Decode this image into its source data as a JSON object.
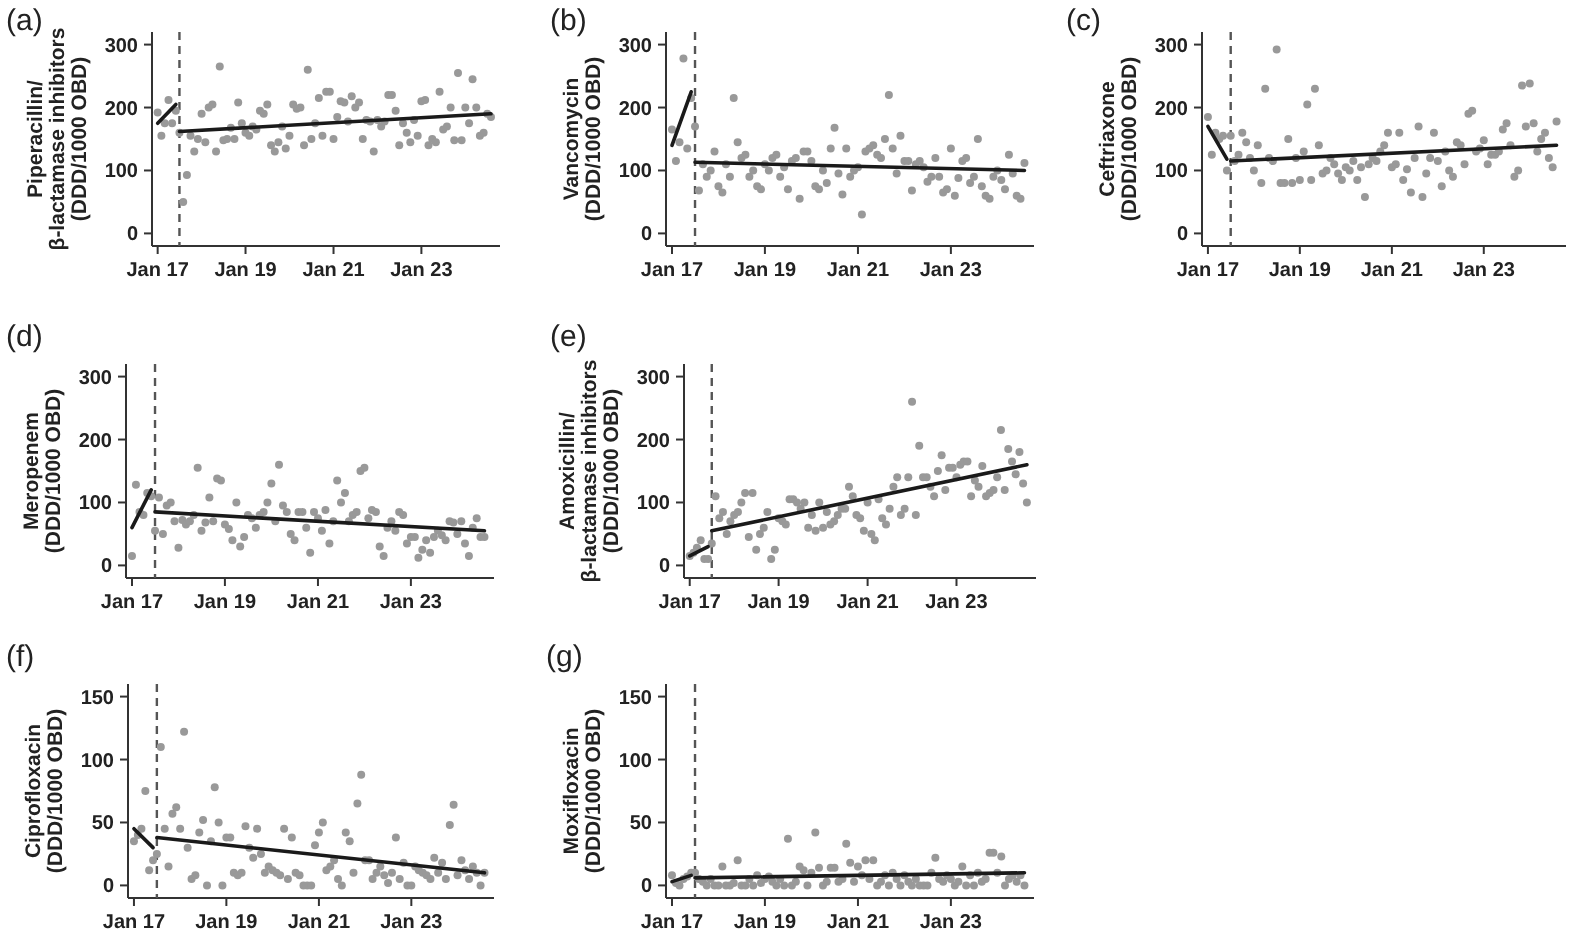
{
  "chart_data": [
    {
      "type": "scatter",
      "title": "(a)",
      "ylabel": "Piperacillin/\nβ-lactamase inhibitors\n(DDD/1000 OBD)",
      "xlim": [
        "2016-11-15",
        "2024-10-15"
      ],
      "ylim": [
        -20,
        320
      ],
      "yticks": [
        0,
        100,
        200,
        300
      ],
      "xticks": [
        {
          "value": "2017-01",
          "label": "Jan 17"
        },
        {
          "value": "2019-01",
          "label": "Jan 19"
        },
        {
          "value": "2021-01",
          "label": "Jan 21"
        },
        {
          "value": "2023-01",
          "label": "Jan 23"
        }
      ],
      "ref_lines": [
        {
          "axis": "x",
          "value": "2017-07",
          "line_style": "dashed",
          "color": "#555555"
        }
      ],
      "x": [
        "2017-01",
        "2017-02",
        "2017-03",
        "2017-04",
        "2017-05",
        "2017-06",
        "2017-07",
        "2017-08",
        "2017-09",
        "2017-10",
        "2017-11",
        "2017-12",
        "2018-01",
        "2018-02",
        "2018-03",
        "2018-04",
        "2018-05",
        "2018-06",
        "2018-07",
        "2018-08",
        "2018-09",
        "2018-10",
        "2018-11",
        "2018-12",
        "2019-01",
        "2019-02",
        "2019-03",
        "2019-04",
        "2019-05",
        "2019-06",
        "2019-07",
        "2019-08",
        "2019-09",
        "2019-10",
        "2019-11",
        "2019-12",
        "2020-01",
        "2020-02",
        "2020-03",
        "2020-04",
        "2020-05",
        "2020-06",
        "2020-07",
        "2020-08",
        "2020-09",
        "2020-10",
        "2020-11",
        "2020-12",
        "2021-01",
        "2021-02",
        "2021-03",
        "2021-04",
        "2021-05",
        "2021-06",
        "2021-07",
        "2021-08",
        "2021-09",
        "2021-10",
        "2021-11",
        "2021-12",
        "2022-01",
        "2022-02",
        "2022-03",
        "2022-04",
        "2022-05",
        "2022-06",
        "2022-07",
        "2022-08",
        "2022-09",
        "2022-10",
        "2022-11",
        "2022-12",
        "2023-01",
        "2023-02",
        "2023-03",
        "2023-04",
        "2023-05",
        "2023-06",
        "2023-07",
        "2023-08",
        "2023-09",
        "2023-10",
        "2023-11",
        "2023-12",
        "2024-01",
        "2024-02",
        "2024-03",
        "2024-04",
        "2024-05",
        "2024-06",
        "2024-07",
        "2024-08"
      ],
      "series": [
        {
          "marker": "circle",
          "color": "#999999",
          "values": [
            192,
            155,
            175,
            212,
            175,
            195,
            160,
            50,
            93,
            155,
            130,
            150,
            190,
            145,
            200,
            205,
            130,
            265,
            148,
            150,
            168,
            150,
            208,
            175,
            160,
            155,
            170,
            165,
            195,
            190,
            205,
            140,
            130,
            145,
            170,
            135,
            155,
            205,
            198,
            200,
            140,
            260,
            150,
            175,
            215,
            155,
            225,
            225,
            150,
            185,
            210,
            208,
            178,
            218,
            200,
            208,
            150,
            180,
            178,
            130,
            180,
            170,
            178,
            220,
            220,
            195,
            140,
            175,
            160,
            145,
            180,
            155,
            210,
            212,
            140,
            150,
            145,
            225,
            165,
            170,
            200,
            148,
            255,
            148,
            200,
            175,
            245,
            200,
            155,
            160,
            190,
            185
          ]
        },
        {
          "type": "line",
          "color": "#1a1a1a",
          "x": [
            "2017-01",
            "2017-06"
          ],
          "values": [
            175,
            205
          ]
        },
        {
          "type": "line",
          "color": "#1a1a1a",
          "x": [
            "2017-07",
            "2024-08"
          ],
          "values": [
            162,
            190
          ]
        }
      ]
    },
    {
      "type": "scatter",
      "title": "(b)",
      "ylabel": "Vancomycin\n(DDD/1000 OBD)",
      "xlim": [
        "2016-11-15",
        "2024-10-15"
      ],
      "ylim": [
        -20,
        320
      ],
      "yticks": [
        0,
        100,
        200,
        300
      ],
      "xticks": [
        {
          "value": "2017-01",
          "label": "Jan 17"
        },
        {
          "value": "2019-01",
          "label": "Jan 19"
        },
        {
          "value": "2021-01",
          "label": "Jan 21"
        },
        {
          "value": "2023-01",
          "label": "Jan 23"
        }
      ],
      "ref_lines": [
        {
          "axis": "x",
          "value": "2017-07",
          "line_style": "dashed",
          "color": "#555555"
        }
      ],
      "x": [
        "2017-01",
        "2017-02",
        "2017-03",
        "2017-04",
        "2017-05",
        "2017-06",
        "2017-07",
        "2017-08",
        "2017-09",
        "2017-10",
        "2017-11",
        "2017-12",
        "2018-01",
        "2018-02",
        "2018-03",
        "2018-04",
        "2018-05",
        "2018-06",
        "2018-07",
        "2018-08",
        "2018-09",
        "2018-10",
        "2018-11",
        "2018-12",
        "2019-01",
        "2019-02",
        "2019-03",
        "2019-04",
        "2019-05",
        "2019-06",
        "2019-07",
        "2019-08",
        "2019-09",
        "2019-10",
        "2019-11",
        "2019-12",
        "2020-01",
        "2020-02",
        "2020-03",
        "2020-04",
        "2020-05",
        "2020-06",
        "2020-07",
        "2020-08",
        "2020-09",
        "2020-10",
        "2020-11",
        "2020-12",
        "2021-01",
        "2021-02",
        "2021-03",
        "2021-04",
        "2021-05",
        "2021-06",
        "2021-07",
        "2021-08",
        "2021-09",
        "2021-10",
        "2021-11",
        "2021-12",
        "2022-01",
        "2022-02",
        "2022-03",
        "2022-04",
        "2022-05",
        "2022-06",
        "2022-07",
        "2022-08",
        "2022-09",
        "2022-10",
        "2022-11",
        "2022-12",
        "2023-01",
        "2023-02",
        "2023-03",
        "2023-04",
        "2023-05",
        "2023-06",
        "2023-07",
        "2023-08",
        "2023-09",
        "2023-10",
        "2023-11",
        "2023-12",
        "2024-01",
        "2024-02",
        "2024-03",
        "2024-04",
        "2024-05",
        "2024-06",
        "2024-07",
        "2024-08"
      ],
      "series": [
        {
          "marker": "circle",
          "color": "#999999",
          "values": [
            165,
            115,
            145,
            278,
            135,
            215,
            170,
            68,
            110,
            90,
            100,
            130,
            75,
            65,
            110,
            90,
            215,
            145,
            120,
            125,
            90,
            100,
            75,
            70,
            110,
            100,
            120,
            125,
            90,
            105,
            70,
            115,
            120,
            55,
            130,
            130,
            115,
            75,
            70,
            100,
            80,
            135,
            168,
            95,
            62,
            135,
            90,
            100,
            105,
            30,
            130,
            135,
            140,
            125,
            120,
            150,
            220,
            135,
            95,
            155,
            115,
            115,
            68,
            110,
            115,
            105,
            82,
            90,
            120,
            90,
            65,
            70,
            135,
            60,
            88,
            115,
            120,
            80,
            90,
            150,
            75,
            60,
            55,
            90,
            100,
            85,
            70,
            125,
            95,
            60,
            55,
            112
          ]
        },
        {
          "type": "line",
          "color": "#1a1a1a",
          "x": [
            "2017-01",
            "2017-06"
          ],
          "values": [
            140,
            225
          ]
        },
        {
          "type": "line",
          "color": "#1a1a1a",
          "x": [
            "2017-07",
            "2024-08"
          ],
          "values": [
            113,
            100
          ]
        }
      ]
    },
    {
      "type": "scatter",
      "title": "(c)",
      "ylabel": "Ceftriaxone\n(DDD/1000 OBD)",
      "xlim": [
        "2016-11-15",
        "2024-10-15"
      ],
      "ylim": [
        -20,
        320
      ],
      "yticks": [
        0,
        100,
        200,
        300
      ],
      "xticks": [
        {
          "value": "2017-01",
          "label": "Jan 17"
        },
        {
          "value": "2019-01",
          "label": "Jan 19"
        },
        {
          "value": "2021-01",
          "label": "Jan 21"
        },
        {
          "value": "2023-01",
          "label": "Jan 23"
        }
      ],
      "ref_lines": [
        {
          "axis": "x",
          "value": "2017-07",
          "line_style": "dashed",
          "color": "#555555"
        }
      ],
      "x": [
        "2017-01",
        "2017-02",
        "2017-03",
        "2017-04",
        "2017-05",
        "2017-06",
        "2017-07",
        "2017-08",
        "2017-09",
        "2017-10",
        "2017-11",
        "2017-12",
        "2018-01",
        "2018-02",
        "2018-03",
        "2018-04",
        "2018-05",
        "2018-06",
        "2018-07",
        "2018-08",
        "2018-09",
        "2018-10",
        "2018-11",
        "2018-12",
        "2019-01",
        "2019-02",
        "2019-03",
        "2019-04",
        "2019-05",
        "2019-06",
        "2019-07",
        "2019-08",
        "2019-09",
        "2019-10",
        "2019-11",
        "2019-12",
        "2020-01",
        "2020-02",
        "2020-03",
        "2020-04",
        "2020-05",
        "2020-06",
        "2020-07",
        "2020-08",
        "2020-09",
        "2020-10",
        "2020-11",
        "2020-12",
        "2021-01",
        "2021-02",
        "2021-03",
        "2021-04",
        "2021-05",
        "2021-06",
        "2021-07",
        "2021-08",
        "2021-09",
        "2021-10",
        "2021-11",
        "2021-12",
        "2022-01",
        "2022-02",
        "2022-03",
        "2022-04",
        "2022-05",
        "2022-06",
        "2022-07",
        "2022-08",
        "2022-09",
        "2022-10",
        "2022-11",
        "2022-12",
        "2023-01",
        "2023-02",
        "2023-03",
        "2023-04",
        "2023-05",
        "2023-06",
        "2023-07",
        "2023-08",
        "2023-09",
        "2023-10",
        "2023-11",
        "2023-12",
        "2024-01",
        "2024-02",
        "2024-03",
        "2024-04",
        "2024-05",
        "2024-06",
        "2024-07",
        "2024-08"
      ],
      "series": [
        {
          "marker": "circle",
          "color": "#999999",
          "values": [
            185,
            125,
            160,
            150,
            155,
            100,
            155,
            115,
            125,
            160,
            145,
            120,
            100,
            140,
            80,
            230,
            120,
            115,
            292,
            80,
            80,
            150,
            80,
            120,
            85,
            130,
            205,
            85,
            230,
            140,
            95,
            100,
            120,
            110,
            95,
            85,
            105,
            100,
            115,
            85,
            105,
            58,
            110,
            120,
            115,
            130,
            140,
            160,
            105,
            110,
            160,
            85,
            102,
            65,
            120,
            170,
            58,
            95,
            120,
            160,
            115,
            75,
            130,
            100,
            90,
            145,
            140,
            110,
            190,
            195,
            130,
            135,
            148,
            110,
            125,
            125,
            130,
            165,
            175,
            140,
            90,
            100,
            235,
            170,
            238,
            175,
            130,
            150,
            160,
            120,
            105,
            178
          ]
        },
        {
          "type": "line",
          "color": "#1a1a1a",
          "x": [
            "2017-01",
            "2017-06"
          ],
          "values": [
            170,
            118
          ]
        },
        {
          "type": "line",
          "color": "#1a1a1a",
          "x": [
            "2017-07",
            "2024-08"
          ],
          "values": [
            115,
            140
          ]
        }
      ]
    },
    {
      "type": "scatter",
      "title": "(d)",
      "ylabel": "Meropenem\n(DDD/1000 OBD)",
      "xlim": [
        "2016-11-15",
        "2024-10-15"
      ],
      "ylim": [
        -20,
        320
      ],
      "yticks": [
        0,
        100,
        200,
        300
      ],
      "xticks": [
        {
          "value": "2017-01",
          "label": "Jan 17"
        },
        {
          "value": "2019-01",
          "label": "Jan 19"
        },
        {
          "value": "2021-01",
          "label": "Jan 21"
        },
        {
          "value": "2023-01",
          "label": "Jan 23"
        }
      ],
      "ref_lines": [
        {
          "axis": "x",
          "value": "2017-07",
          "line_style": "dashed",
          "color": "#555555"
        }
      ],
      "x": [
        "2017-01",
        "2017-02",
        "2017-03",
        "2017-04",
        "2017-05",
        "2017-06",
        "2017-07",
        "2017-08",
        "2017-09",
        "2017-10",
        "2017-11",
        "2017-12",
        "2018-01",
        "2018-02",
        "2018-03",
        "2018-04",
        "2018-05",
        "2018-06",
        "2018-07",
        "2018-08",
        "2018-09",
        "2018-10",
        "2018-11",
        "2018-12",
        "2019-01",
        "2019-02",
        "2019-03",
        "2019-04",
        "2019-05",
        "2019-06",
        "2019-07",
        "2019-08",
        "2019-09",
        "2019-10",
        "2019-11",
        "2019-12",
        "2020-01",
        "2020-02",
        "2020-03",
        "2020-04",
        "2020-05",
        "2020-06",
        "2020-07",
        "2020-08",
        "2020-09",
        "2020-10",
        "2020-11",
        "2020-12",
        "2021-01",
        "2021-02",
        "2021-03",
        "2021-04",
        "2021-05",
        "2021-06",
        "2021-07",
        "2021-08",
        "2021-09",
        "2021-10",
        "2021-11",
        "2021-12",
        "2022-01",
        "2022-02",
        "2022-03",
        "2022-04",
        "2022-05",
        "2022-06",
        "2022-07",
        "2022-08",
        "2022-09",
        "2022-10",
        "2022-11",
        "2022-12",
        "2023-01",
        "2023-02",
        "2023-03",
        "2023-04",
        "2023-05",
        "2023-06",
        "2023-07",
        "2023-08",
        "2023-09",
        "2023-10",
        "2023-11",
        "2023-12",
        "2024-01",
        "2024-02",
        "2024-03",
        "2024-04",
        "2024-05",
        "2024-06",
        "2024-07",
        "2024-08"
      ],
      "series": [
        {
          "marker": "circle",
          "color": "#999999",
          "values": [
            15,
            128,
            85,
            80,
            115,
            110,
            55,
            108,
            50,
            95,
            100,
            70,
            28,
            72,
            65,
            70,
            80,
            155,
            55,
            68,
            108,
            70,
            138,
            135,
            65,
            58,
            40,
            100,
            30,
            45,
            80,
            75,
            60,
            80,
            85,
            100,
            130,
            70,
            160,
            95,
            85,
            50,
            40,
            85,
            85,
            60,
            20,
            85,
            75,
            55,
            88,
            35,
            70,
            135,
            100,
            115,
            70,
            80,
            85,
            150,
            155,
            75,
            88,
            85,
            30,
            15,
            60,
            70,
            55,
            85,
            80,
            35,
            45,
            45,
            12,
            25,
            40,
            20,
            45,
            55,
            48,
            40,
            70,
            68,
            50,
            70,
            35,
            15,
            60,
            75,
            45,
            45
          ]
        },
        {
          "type": "line",
          "color": "#1a1a1a",
          "x": [
            "2017-01",
            "2017-06"
          ],
          "values": [
            60,
            120
          ]
        },
        {
          "type": "line",
          "color": "#1a1a1a",
          "x": [
            "2017-07",
            "2024-08"
          ],
          "values": [
            85,
            55
          ]
        }
      ]
    },
    {
      "type": "scatter",
      "title": "(e)",
      "ylabel": "Amoxicillin/\nβ-lactamase inhibitors\n(DDD/1000 OBD)",
      "xlim": [
        "2016-11-15",
        "2024-10-15"
      ],
      "ylim": [
        -20,
        320
      ],
      "yticks": [
        0,
        100,
        200,
        300
      ],
      "xticks": [
        {
          "value": "2017-01",
          "label": "Jan 17"
        },
        {
          "value": "2019-01",
          "label": "Jan 19"
        },
        {
          "value": "2021-01",
          "label": "Jan 21"
        },
        {
          "value": "2023-01",
          "label": "Jan 23"
        }
      ],
      "ref_lines": [
        {
          "axis": "x",
          "value": "2017-07",
          "line_style": "dashed",
          "color": "#555555"
        }
      ],
      "x": [
        "2017-01",
        "2017-02",
        "2017-03",
        "2017-04",
        "2017-05",
        "2017-06",
        "2017-07",
        "2017-08",
        "2017-09",
        "2017-10",
        "2017-11",
        "2017-12",
        "2018-01",
        "2018-02",
        "2018-03",
        "2018-04",
        "2018-05",
        "2018-06",
        "2018-07",
        "2018-08",
        "2018-09",
        "2018-10",
        "2018-11",
        "2018-12",
        "2019-01",
        "2019-02",
        "2019-03",
        "2019-04",
        "2019-05",
        "2019-06",
        "2019-07",
        "2019-08",
        "2019-09",
        "2019-10",
        "2019-11",
        "2019-12",
        "2020-01",
        "2020-02",
        "2020-03",
        "2020-04",
        "2020-05",
        "2020-06",
        "2020-07",
        "2020-08",
        "2020-09",
        "2020-10",
        "2020-11",
        "2020-12",
        "2021-01",
        "2021-02",
        "2021-03",
        "2021-04",
        "2021-05",
        "2021-06",
        "2021-07",
        "2021-08",
        "2021-09",
        "2021-10",
        "2021-11",
        "2021-12",
        "2022-01",
        "2022-02",
        "2022-03",
        "2022-04",
        "2022-05",
        "2022-06",
        "2022-07",
        "2022-08",
        "2022-09",
        "2022-10",
        "2022-11",
        "2022-12",
        "2023-01",
        "2023-02",
        "2023-03",
        "2023-04",
        "2023-05",
        "2023-06",
        "2023-07",
        "2023-08",
        "2023-09",
        "2023-10",
        "2023-11",
        "2023-12",
        "2024-01",
        "2024-02",
        "2024-03",
        "2024-04",
        "2024-05",
        "2024-06",
        "2024-07",
        "2024-08"
      ],
      "series": [
        {
          "marker": "circle",
          "color": "#999999",
          "values": [
            15,
            20,
            28,
            40,
            10,
            10,
            35,
            110,
            75,
            85,
            50,
            70,
            80,
            85,
            100,
            115,
            45,
            115,
            25,
            50,
            60,
            85,
            10,
            25,
            75,
            70,
            65,
            105,
            105,
            100,
            90,
            100,
            60,
            80,
            55,
            100,
            60,
            85,
            65,
            70,
            80,
            90,
            90,
            125,
            110,
            80,
            75,
            55,
            100,
            50,
            40,
            105,
            75,
            65,
            90,
            125,
            140,
            80,
            90,
            140,
            260,
            80,
            190,
            140,
            140,
            125,
            110,
            150,
            175,
            120,
            155,
            155,
            140,
            160,
            165,
            165,
            110,
            135,
            125,
            158,
            110,
            115,
            120,
            140,
            215,
            120,
            185,
            165,
            145,
            180,
            130,
            100
          ]
        },
        {
          "type": "line",
          "color": "#1a1a1a",
          "x": [
            "2017-01",
            "2017-06"
          ],
          "values": [
            15,
            30
          ]
        },
        {
          "type": "line",
          "color": "#1a1a1a",
          "x": [
            "2017-07",
            "2024-08"
          ],
          "values": [
            55,
            160
          ]
        }
      ]
    },
    {
      "type": "scatter",
      "title": "(f)",
      "ylabel": "Ciprofloxacin\n(DDD/1000 OBD)",
      "xlim": [
        "2016-11-15",
        "2024-10-15"
      ],
      "ylim": [
        -10,
        160
      ],
      "yticks": [
        0,
        50,
        100,
        150
      ],
      "xticks": [
        {
          "value": "2017-01",
          "label": "Jan 17"
        },
        {
          "value": "2019-01",
          "label": "Jan 19"
        },
        {
          "value": "2021-01",
          "label": "Jan 21"
        },
        {
          "value": "2023-01",
          "label": "Jan 23"
        }
      ],
      "ref_lines": [
        {
          "axis": "x",
          "value": "2017-07",
          "line_style": "dashed",
          "color": "#555555"
        }
      ],
      "x": [
        "2017-01",
        "2017-02",
        "2017-03",
        "2017-04",
        "2017-05",
        "2017-06",
        "2017-07",
        "2017-08",
        "2017-09",
        "2017-10",
        "2017-11",
        "2017-12",
        "2018-01",
        "2018-02",
        "2018-03",
        "2018-04",
        "2018-05",
        "2018-06",
        "2018-07",
        "2018-08",
        "2018-09",
        "2018-10",
        "2018-11",
        "2018-12",
        "2019-01",
        "2019-02",
        "2019-03",
        "2019-04",
        "2019-05",
        "2019-06",
        "2019-07",
        "2019-08",
        "2019-09",
        "2019-10",
        "2019-11",
        "2019-12",
        "2020-01",
        "2020-02",
        "2020-03",
        "2020-04",
        "2020-05",
        "2020-06",
        "2020-07",
        "2020-08",
        "2020-09",
        "2020-10",
        "2020-11",
        "2020-12",
        "2021-01",
        "2021-02",
        "2021-03",
        "2021-04",
        "2021-05",
        "2021-06",
        "2021-07",
        "2021-08",
        "2021-09",
        "2021-10",
        "2021-11",
        "2021-12",
        "2022-01",
        "2022-02",
        "2022-03",
        "2022-04",
        "2022-05",
        "2022-06",
        "2022-07",
        "2022-08",
        "2022-09",
        "2022-10",
        "2022-11",
        "2022-12",
        "2023-01",
        "2023-02",
        "2023-03",
        "2023-04",
        "2023-05",
        "2023-06",
        "2023-07",
        "2023-08",
        "2023-09",
        "2023-10",
        "2023-11",
        "2023-12",
        "2024-01",
        "2024-02",
        "2024-03",
        "2024-04",
        "2024-05",
        "2024-06",
        "2024-07",
        "2024-08"
      ],
      "series": [
        {
          "marker": "circle",
          "color": "#999999",
          "values": [
            35,
            40,
            45,
            75,
            12,
            20,
            25,
            110,
            45,
            15,
            57,
            62,
            45,
            122,
            30,
            5,
            8,
            42,
            52,
            0,
            35,
            78,
            50,
            0,
            38,
            38,
            10,
            8,
            10,
            47,
            30,
            22,
            45,
            25,
            10,
            15,
            12,
            10,
            8,
            45,
            5,
            38,
            10,
            8,
            0,
            0,
            0,
            32,
            42,
            50,
            12,
            15,
            20,
            5,
            0,
            42,
            35,
            10,
            65,
            88,
            20,
            20,
            5,
            10,
            15,
            8,
            2,
            10,
            38,
            5,
            18,
            0,
            0,
            15,
            12,
            10,
            8,
            5,
            22,
            10,
            18,
            5,
            48,
            64,
            8,
            20,
            12,
            5,
            15,
            10,
            0,
            10
          ]
        },
        {
          "type": "line",
          "color": "#1a1a1a",
          "x": [
            "2017-01",
            "2017-06"
          ],
          "values": [
            45,
            30
          ]
        },
        {
          "type": "line",
          "color": "#1a1a1a",
          "x": [
            "2017-07",
            "2024-08"
          ],
          "values": [
            38,
            10
          ]
        }
      ]
    },
    {
      "type": "scatter",
      "title": "(g)",
      "ylabel": "Moxifloxacin\n(DDD/1000 OBD)",
      "xlim": [
        "2016-11-15",
        "2024-10-15"
      ],
      "ylim": [
        -10,
        160
      ],
      "yticks": [
        0,
        50,
        100,
        150
      ],
      "xticks": [
        {
          "value": "2017-01",
          "label": "Jan 17"
        },
        {
          "value": "2019-01",
          "label": "Jan 19"
        },
        {
          "value": "2021-01",
          "label": "Jan 21"
        },
        {
          "value": "2023-01",
          "label": "Jan 23"
        }
      ],
      "ref_lines": [
        {
          "axis": "x",
          "value": "2017-07",
          "line_style": "dashed",
          "color": "#555555"
        }
      ],
      "x": [
        "2017-01",
        "2017-02",
        "2017-03",
        "2017-04",
        "2017-05",
        "2017-06",
        "2017-07",
        "2017-08",
        "2017-09",
        "2017-10",
        "2017-11",
        "2017-12",
        "2018-01",
        "2018-02",
        "2018-03",
        "2018-04",
        "2018-05",
        "2018-06",
        "2018-07",
        "2018-08",
        "2018-09",
        "2018-10",
        "2018-11",
        "2018-12",
        "2019-01",
        "2019-02",
        "2019-03",
        "2019-04",
        "2019-05",
        "2019-06",
        "2019-07",
        "2019-08",
        "2019-09",
        "2019-10",
        "2019-11",
        "2019-12",
        "2020-01",
        "2020-02",
        "2020-03",
        "2020-04",
        "2020-05",
        "2020-06",
        "2020-07",
        "2020-08",
        "2020-09",
        "2020-10",
        "2020-11",
        "2020-12",
        "2021-01",
        "2021-02",
        "2021-03",
        "2021-04",
        "2021-05",
        "2021-06",
        "2021-07",
        "2021-08",
        "2021-09",
        "2021-10",
        "2021-11",
        "2021-12",
        "2022-01",
        "2022-02",
        "2022-03",
        "2022-04",
        "2022-05",
        "2022-06",
        "2022-07",
        "2022-08",
        "2022-09",
        "2022-10",
        "2022-11",
        "2022-12",
        "2023-01",
        "2023-02",
        "2023-03",
        "2023-04",
        "2023-05",
        "2023-06",
        "2023-07",
        "2023-08",
        "2023-09",
        "2023-10",
        "2023-11",
        "2023-12",
        "2024-01",
        "2024-02",
        "2024-03",
        "2024-04",
        "2024-05",
        "2024-06",
        "2024-07",
        "2024-08"
      ],
      "series": [
        {
          "marker": "circle",
          "color": "#999999",
          "values": [
            8,
            2,
            0,
            5,
            7,
            10,
            10,
            5,
            3,
            0,
            5,
            0,
            0,
            15,
            0,
            0,
            2,
            20,
            0,
            0,
            5,
            0,
            8,
            2,
            5,
            7,
            3,
            0,
            5,
            0,
            37,
            0,
            3,
            15,
            12,
            0,
            10,
            42,
            14,
            0,
            3,
            14,
            14,
            3,
            5,
            33,
            18,
            3,
            15,
            8,
            20,
            5,
            20,
            0,
            3,
            8,
            0,
            10,
            5,
            0,
            8,
            3,
            0,
            5,
            0,
            0,
            0,
            10,
            22,
            5,
            3,
            8,
            5,
            0,
            3,
            15,
            0,
            8,
            0,
            10,
            3,
            5,
            26,
            26,
            10,
            23,
            0,
            5,
            8,
            3,
            8,
            0
          ]
        },
        {
          "type": "line",
          "color": "#1a1a1a",
          "x": [
            "2017-01",
            "2017-06"
          ],
          "values": [
            3,
            8
          ]
        },
        {
          "type": "line",
          "color": "#1a1a1a",
          "x": [
            "2017-07",
            "2024-08"
          ],
          "values": [
            6,
            10
          ]
        }
      ]
    }
  ]
}
